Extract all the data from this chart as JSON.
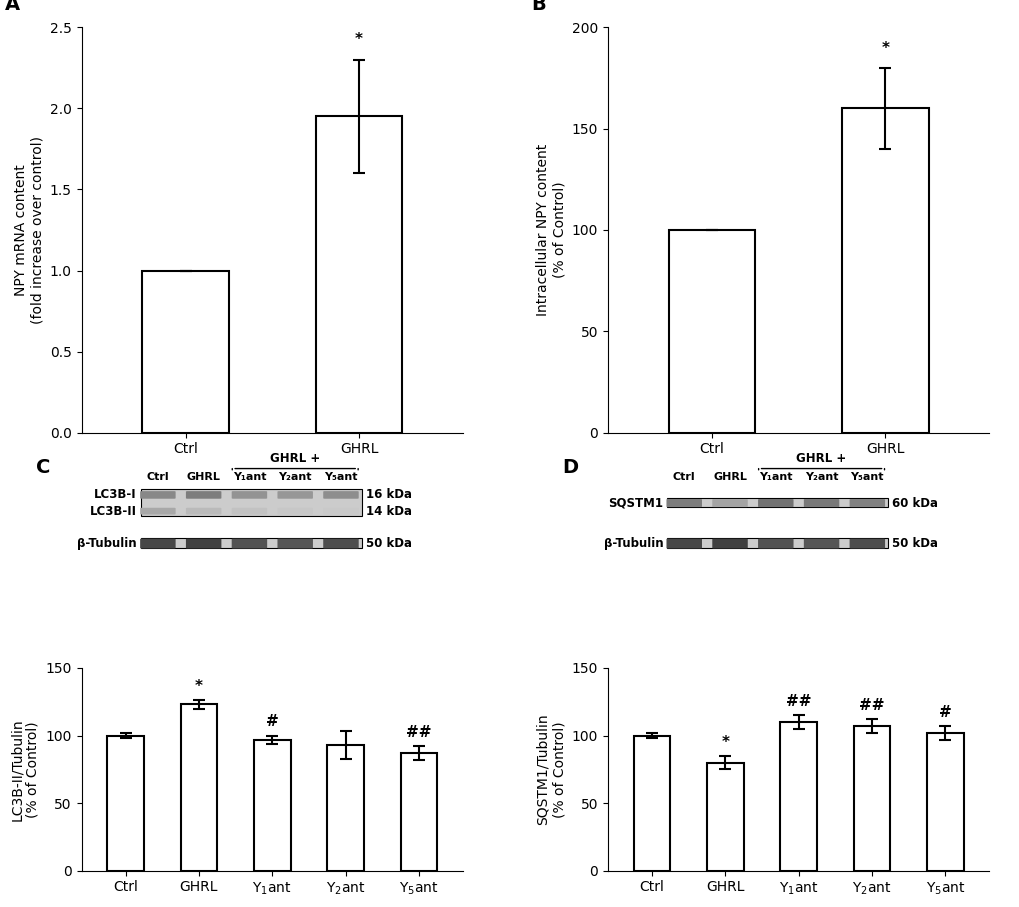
{
  "panel_A": {
    "categories": [
      "Ctrl",
      "GHRL"
    ],
    "values": [
      1.0,
      1.95
    ],
    "errors": [
      0.0,
      0.35
    ],
    "ylabel": "NPY mRNA content\n(fold increase over control)",
    "ylim": [
      0.0,
      2.5
    ],
    "yticks": [
      0.0,
      0.5,
      1.0,
      1.5,
      2.0,
      2.5
    ],
    "sig_labels": [
      "",
      "*"
    ],
    "label": "A"
  },
  "panel_B": {
    "categories": [
      "Ctrl",
      "GHRL"
    ],
    "values": [
      100.0,
      160.0
    ],
    "errors": [
      0.0,
      20.0
    ],
    "ylabel": "Intracellular NPY content\n(% of Control)",
    "ylim": [
      0,
      200
    ],
    "yticks": [
      0,
      50,
      100,
      150,
      200
    ],
    "sig_labels": [
      "",
      "*"
    ],
    "label": "B"
  },
  "panel_C": {
    "categories": [
      "Ctrl",
      "GHRL",
      "Y$_1$ant",
      "Y$_2$ant",
      "Y$_5$ant"
    ],
    "values": [
      100.0,
      123.0,
      97.0,
      93.0,
      87.0
    ],
    "errors": [
      2.0,
      3.5,
      3.0,
      10.0,
      5.0
    ],
    "ylabel": "LC3B-II/Tubulin\n(% of Control)",
    "ylim": [
      0,
      150
    ],
    "yticks": [
      0,
      50,
      100,
      150
    ],
    "sig_labels": [
      "",
      "*",
      "#",
      "",
      "##"
    ],
    "ghrl_plus_cats": [
      "Y$_1$ant",
      "Y$_2$ant",
      "Y$_5$ant"
    ],
    "bracket_label": "GHRL +",
    "label": "C",
    "wb_left_labels": [
      "LC3B-I",
      "LC3B-II",
      "β-Tubulin"
    ],
    "wb_right_labels": [
      "16 kDa",
      "14 kDa",
      "50 kDa"
    ],
    "wb_col_labels": [
      "Ctrl",
      "GHRL",
      "Y₁ant",
      "Y₂ant",
      "Y₅ant"
    ],
    "wb_bracket_label": "GHRL +"
  },
  "panel_D": {
    "categories": [
      "Ctrl",
      "GHRL",
      "Y$_1$ant",
      "Y$_2$ant",
      "Y$_5$ant"
    ],
    "values": [
      100.0,
      80.0,
      110.0,
      107.0,
      102.0
    ],
    "errors": [
      2.0,
      5.0,
      5.0,
      5.0,
      5.0
    ],
    "ylabel": "SQSTM1/Tubulin\n(% of Control)",
    "ylim": [
      0,
      150
    ],
    "yticks": [
      0,
      50,
      100,
      150
    ],
    "sig_labels": [
      "",
      "*",
      "##",
      "##",
      "#"
    ],
    "ghrl_plus_cats": [
      "Y$_1$ant",
      "Y$_2$ant",
      "Y$_5$ant"
    ],
    "bracket_label": "GHRL +",
    "label": "D",
    "wb_left_labels": [
      "SQSTM1",
      "β-Tubulin"
    ],
    "wb_right_labels": [
      "60 kDa",
      "50 kDa"
    ],
    "wb_col_labels": [
      "Ctrl",
      "GHRL",
      "Y₁ant",
      "Y₂ant",
      "Y₅ant"
    ],
    "wb_bracket_label": "GHRL +"
  },
  "bar_color": "#ffffff",
  "bar_edgecolor": "#000000",
  "bar_linewidth": 1.5,
  "error_color": "#000000",
  "error_capsize": 4,
  "error_linewidth": 1.5,
  "background_color": "#ffffff",
  "font_size": 10,
  "label_font_size": 14
}
